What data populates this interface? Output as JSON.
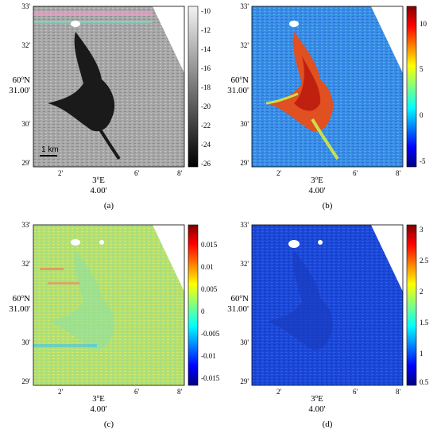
{
  "axes": {
    "y_ticks": [
      "33'",
      "32'",
      "31.00'",
      "30'",
      "29'"
    ],
    "y_deg": "60",
    "y_sup": "o",
    "y_hem": "N",
    "x_ticks": [
      "2'",
      "4.00'",
      "6'",
      "8'"
    ],
    "x_deg": "3",
    "x_sup": "o",
    "x_hem": "E"
  },
  "panels": [
    {
      "id": "a",
      "caption": "(a)",
      "colormap": "gray",
      "colorbar_ticks": [
        "-10",
        "-12",
        "-14",
        "-16",
        "-18",
        "-20",
        "-22",
        "-24",
        "-26"
      ],
      "scale_bar": "1 km"
    },
    {
      "id": "b",
      "caption": "(b)",
      "colormap": "jet",
      "colorbar_ticks": [
        "10",
        "5",
        "0",
        "-5"
      ]
    },
    {
      "id": "c",
      "caption": "(c)",
      "colormap": "jet",
      "colorbar_ticks": [
        "0.015",
        "0.01",
        "0.005",
        "0",
        "-0.005",
        "-0.01",
        "-0.015"
      ]
    },
    {
      "id": "d",
      "caption": "(d)",
      "colormap": "jet",
      "colorbar_ticks": [
        "3",
        "2.5",
        "2",
        "1.5",
        "1",
        "0.5"
      ]
    }
  ],
  "colors": {
    "slick_dark": "#1a1a1a",
    "sea_gray": "#9a9a9a",
    "jet_blue": "#2f7fe0",
    "jet_red": "#d0301a",
    "jet_green": "#a8e070",
    "deep_blue": "#1c48d8"
  }
}
